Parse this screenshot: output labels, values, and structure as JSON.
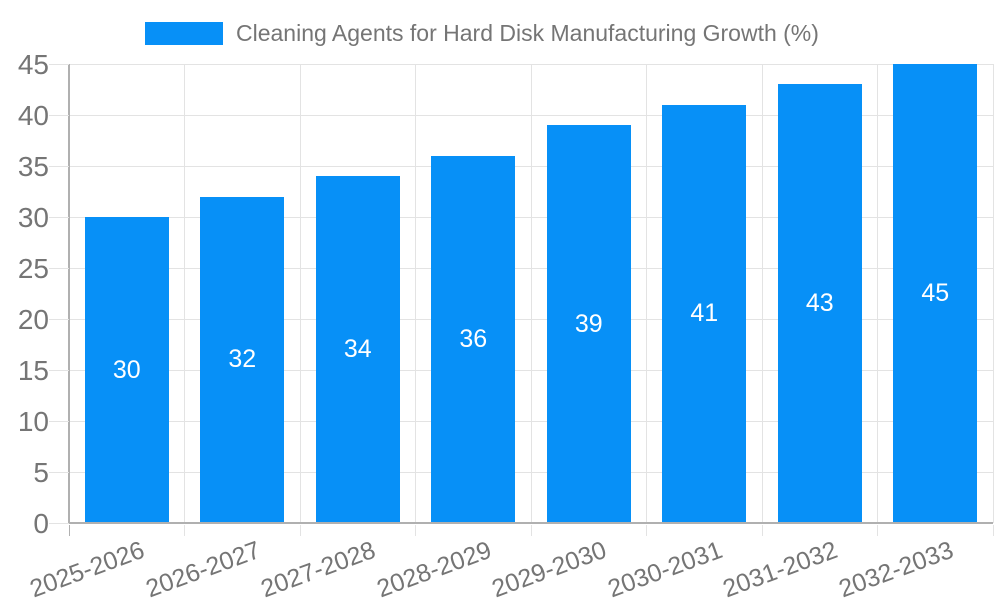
{
  "chart_data": {
    "type": "bar",
    "title": "Cleaning Agents for Hard Disk Manufacturing Growth (%)",
    "categories": [
      "2025-2026",
      "2026-2027",
      "2027-2028",
      "2028-2029",
      "2029-2030",
      "2030-2031",
      "2031-2032",
      "2032-2033"
    ],
    "values": [
      30,
      32,
      34,
      36,
      39,
      41,
      43,
      45
    ],
    "bar_labels": [
      "30",
      "32",
      "34",
      "36",
      "39",
      "41",
      "43",
      "45"
    ],
    "xlabel": "",
    "ylabel": "",
    "ylim": [
      0,
      45
    ],
    "ytick_step": 5,
    "ytick_labels": [
      "0",
      "5",
      "10",
      "15",
      "20",
      "25",
      "30",
      "35",
      "40",
      "45"
    ],
    "grid": true,
    "legend_position": "top",
    "x_label_rotation_deg": -20,
    "colors": {
      "bar": "#0790f7",
      "gridline": "#e3e3e3",
      "axis": "#b0b0b0",
      "tick": "#e3e3e3",
      "axis_text": "#757575",
      "bar_label_text": "#ffffff",
      "background": "#ffffff"
    }
  }
}
